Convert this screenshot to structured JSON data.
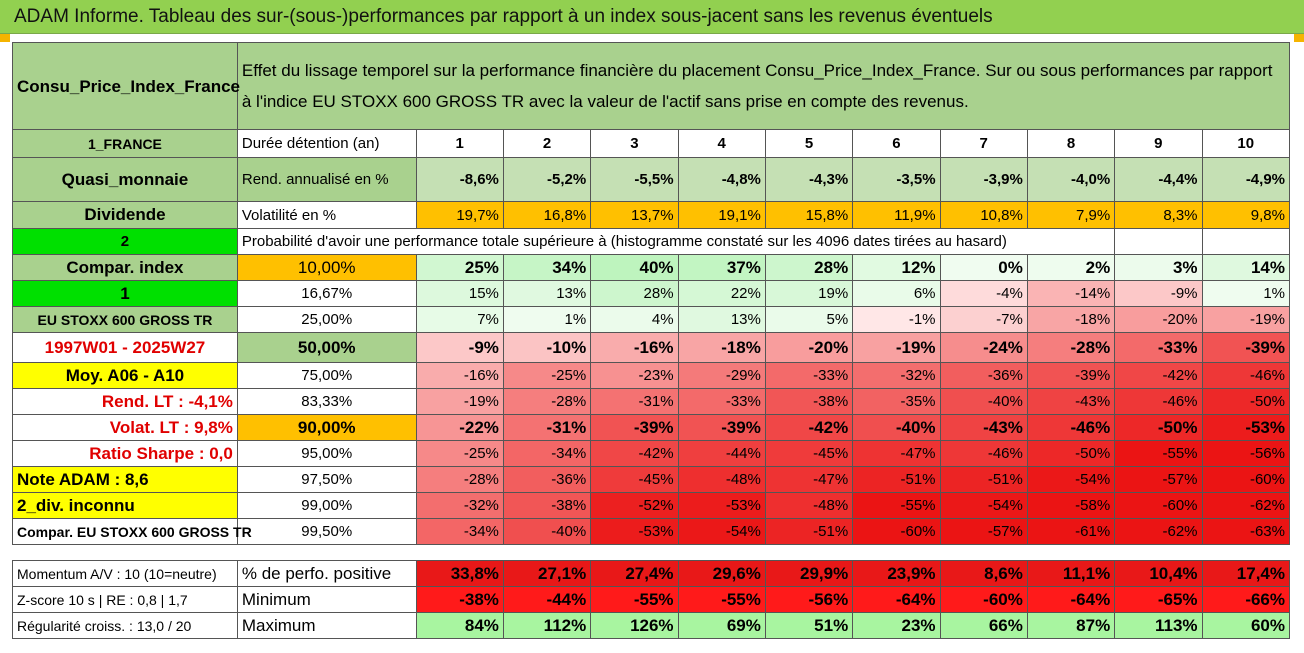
{
  "title": "ADAM Informe. Tableau des sur-(sous-)performances par rapport à un index sous-jacent sans les revenus éventuels",
  "header": {
    "asset_name": "Consu_Price_Index_France",
    "description": "Effet du lissage temporel sur la performance financière du placement Consu_Price_Index_France. Sur ou sous performances par rapport à l'indice EU STOXX 600 GROSS TR avec la valeur de l'actif sans prise en compte des revenus."
  },
  "side_labels": {
    "r1": "1_FRANCE",
    "r2": "Quasi_monnaie",
    "r3": "Dividende",
    "r4": "2",
    "r5": "Compar. index",
    "r6": "1",
    "r7": "EU STOXX 600 GROSS TR",
    "r8": "1997W01 - 2025W27",
    "r9": "Moy. A06 - A10",
    "r10": "Rend. LT :    -4,1%",
    "r11": "Volat. LT :    9,8%",
    "r12": "Ratio Sharpe :    0,0",
    "r13": "Note ADAM : 8,6",
    "r14": "2_div. inconnu",
    "r15": "Compar. EU STOXX 600 GROSS TR"
  },
  "row_labels": {
    "holding": "Durée détention (an)",
    "return": "Rend. annualisé en %",
    "volatility": "Volatilité en %",
    "probability": "Probabilité d'avoir une performance totale supérieure à (histogramme constaté sur les 4096 dates tirées au hasard)"
  },
  "years": [
    "1",
    "2",
    "3",
    "4",
    "5",
    "6",
    "7",
    "8",
    "9",
    "10"
  ],
  "returns": [
    "-8,6%",
    "-5,2%",
    "-5,5%",
    "-4,8%",
    "-4,3%",
    "-3,5%",
    "-3,9%",
    "-4,0%",
    "-4,4%",
    "-4,9%"
  ],
  "volatilities": [
    "19,7%",
    "16,8%",
    "13,7%",
    "19,1%",
    "15,8%",
    "11,9%",
    "10,8%",
    "7,9%",
    "8,3%",
    "9,8%"
  ],
  "percentiles": [
    "10,00%",
    "16,67%",
    "25,00%",
    "50,00%",
    "75,00%",
    "83,33%",
    "90,00%",
    "95,00%",
    "97,50%",
    "99,00%",
    "99,50%"
  ],
  "prob_rows": [
    [
      "25%",
      "34%",
      "40%",
      "37%",
      "28%",
      "12%",
      "0%",
      "2%",
      "3%",
      "14%"
    ],
    [
      "15%",
      "13%",
      "28%",
      "22%",
      "19%",
      "6%",
      "-4%",
      "-14%",
      "-9%",
      "1%"
    ],
    [
      "7%",
      "1%",
      "4%",
      "13%",
      "5%",
      "-1%",
      "-7%",
      "-18%",
      "-20%",
      "-19%"
    ],
    [
      "-9%",
      "-10%",
      "-16%",
      "-18%",
      "-20%",
      "-19%",
      "-24%",
      "-28%",
      "-33%",
      "-39%"
    ],
    [
      "-16%",
      "-25%",
      "-23%",
      "-29%",
      "-33%",
      "-32%",
      "-36%",
      "-39%",
      "-42%",
      "-46%"
    ],
    [
      "-19%",
      "-28%",
      "-31%",
      "-33%",
      "-38%",
      "-35%",
      "-40%",
      "-43%",
      "-46%",
      "-50%"
    ],
    [
      "-22%",
      "-31%",
      "-39%",
      "-39%",
      "-42%",
      "-40%",
      "-43%",
      "-46%",
      "-50%",
      "-53%"
    ],
    [
      "-25%",
      "-34%",
      "-42%",
      "-44%",
      "-45%",
      "-47%",
      "-46%",
      "-50%",
      "-55%",
      "-56%"
    ],
    [
      "-28%",
      "-36%",
      "-45%",
      "-48%",
      "-47%",
      "-51%",
      "-51%",
      "-54%",
      "-57%",
      "-60%"
    ],
    [
      "-32%",
      "-38%",
      "-52%",
      "-53%",
      "-48%",
      "-55%",
      "-54%",
      "-58%",
      "-60%",
      "-62%"
    ],
    [
      "-34%",
      "-40%",
      "-53%",
      "-54%",
      "-51%",
      "-60%",
      "-57%",
      "-61%",
      "-62%",
      "-63%"
    ]
  ],
  "bottom": {
    "labels": [
      "Momentum A/V : 10 (10=neutre)",
      "Z-score 10 s | RE : 0,8 | 1,7",
      "Régularité croiss. : 13,0 / 20"
    ],
    "names": [
      "% de perfo. positive",
      "Minimum",
      "Maximum"
    ],
    "positive": [
      "33,8%",
      "27,1%",
      "27,4%",
      "29,6%",
      "29,9%",
      "23,9%",
      "8,6%",
      "11,1%",
      "10,4%",
      "17,4%"
    ],
    "minimum": [
      "-38%",
      "-44%",
      "-55%",
      "-55%",
      "-56%",
      "-64%",
      "-60%",
      "-64%",
      "-65%",
      "-66%"
    ],
    "maximum": [
      "84%",
      "112%",
      "126%",
      "69%",
      "51%",
      "23%",
      "66%",
      "87%",
      "113%",
      "60%"
    ]
  },
  "colors": {
    "title_green": "#92d050",
    "label_green": "#a9d18e",
    "bright_green": "#00e000",
    "yellow": "#ffff00",
    "orange": "#ffc000",
    "red": "#e00000"
  }
}
